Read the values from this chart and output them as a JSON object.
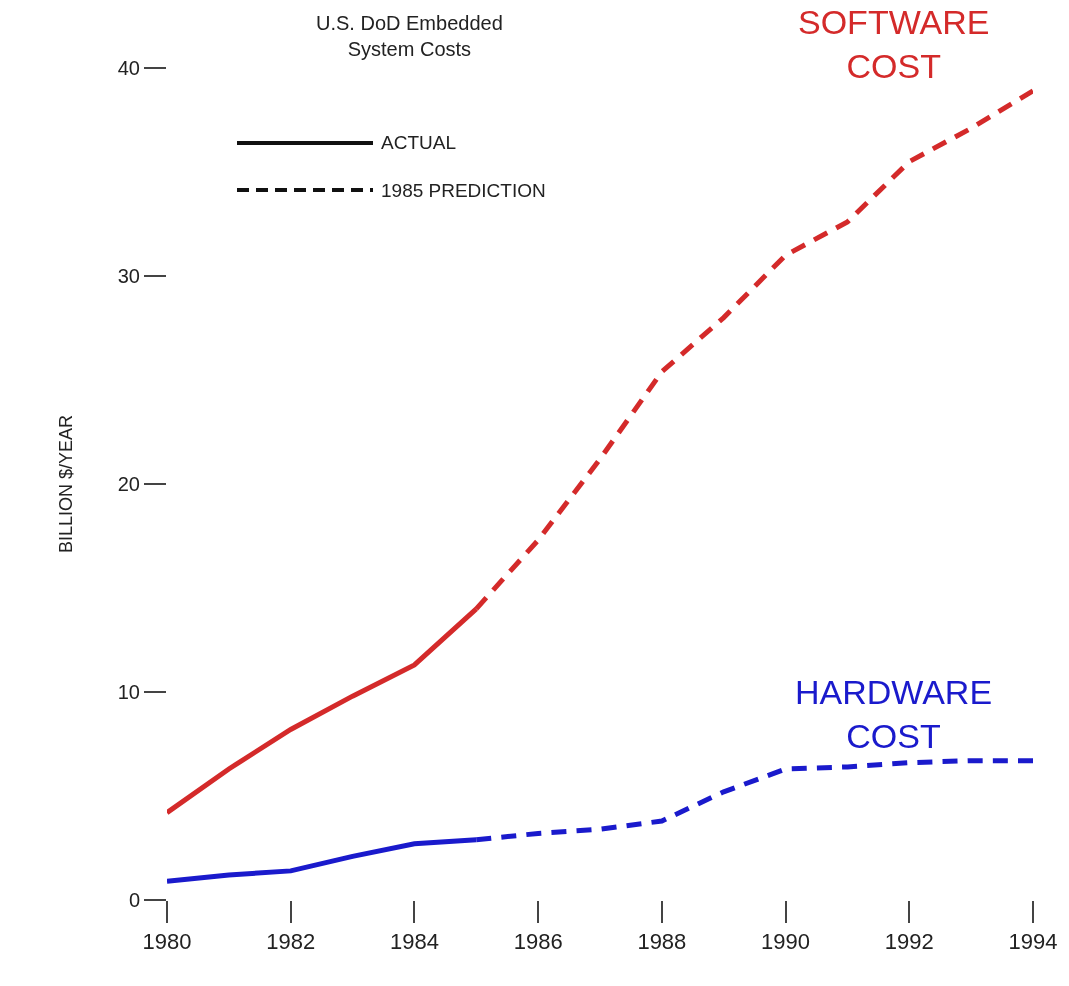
{
  "chart_data": {
    "type": "line",
    "title": "U.S. DoD Embedded\nSystem Costs",
    "ylabel": "BILLION $/YEAR",
    "xlim": [
      1980,
      1994
    ],
    "xticks": [
      1980,
      1982,
      1984,
      1986,
      1988,
      1990,
      1992,
      1994
    ],
    "ylim": [
      0,
      40
    ],
    "yticks": [
      0,
      10,
      20,
      30,
      40
    ],
    "grid": false,
    "marker": "none",
    "annotations": [
      "ACTUAL",
      "1985 PREDICTION"
    ],
    "series": [
      {
        "name": "SOFTWARE COST",
        "color": "#d42a2a",
        "line_style": "solid",
        "x": [
          1980,
          1981,
          1982,
          1983,
          1984,
          1985
        ],
        "values": [
          4.2,
          6.3,
          8.2,
          9.8,
          11.3,
          14.0
        ]
      },
      {
        "color": "#d42a2a",
        "line_style": "dashed",
        "x": [
          1985,
          1986,
          1987,
          1988,
          1989,
          1990,
          1991,
          1992,
          1993,
          1994
        ],
        "values": [
          14.0,
          17.3,
          21.2,
          25.4,
          28.0,
          31.0,
          32.6,
          35.5,
          37.1,
          38.9
        ]
      },
      {
        "name": "HARDWARE COST",
        "color": "#1a1acc",
        "line_style": "solid",
        "x": [
          1980,
          1981,
          1982,
          1983,
          1984,
          1985
        ],
        "values": [
          0.9,
          1.2,
          1.4,
          2.1,
          2.7,
          2.9
        ]
      },
      {
        "color": "#1a1acc",
        "line_style": "dashed",
        "x": [
          1985,
          1986,
          1987,
          1988,
          1989,
          1990,
          1991,
          1992,
          1993,
          1994
        ],
        "values": [
          2.9,
          3.2,
          3.4,
          3.8,
          5.2,
          6.3,
          6.4,
          6.6,
          6.7,
          6.7
        ]
      }
    ]
  }
}
